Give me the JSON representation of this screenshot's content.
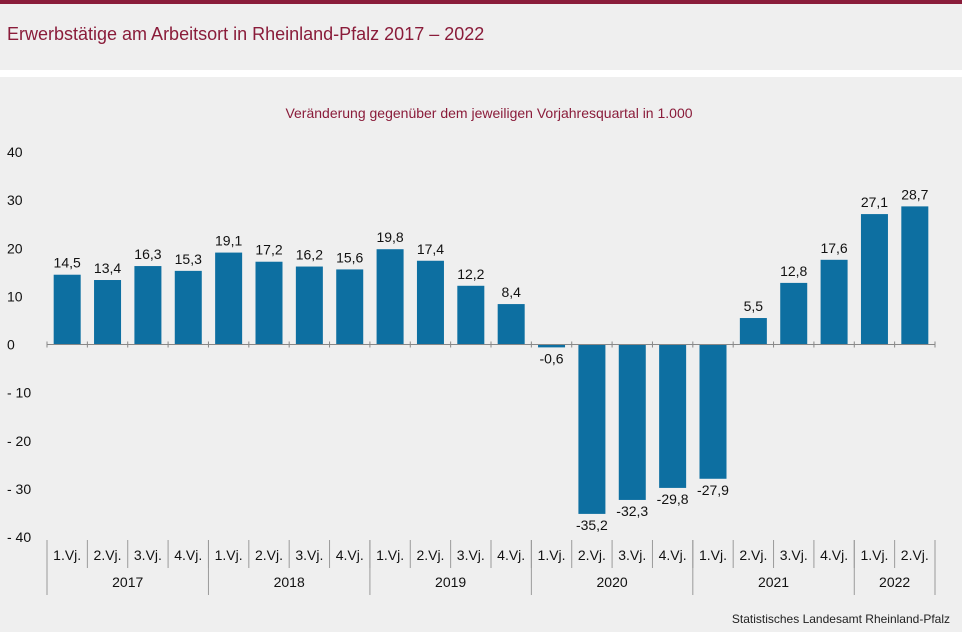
{
  "header": {
    "title": "Erwerbstätige am Arbeitsort in Rheinland-Pfalz 2017 – 2022"
  },
  "footer": {
    "source": "Statistisches Landesamt  Rheinland-Pfalz"
  },
  "colors": {
    "bar": "#0d6fa1",
    "accent": "#8a1c3a",
    "background": "#efefef"
  },
  "chart_data": {
    "type": "bar",
    "title": "Veränderung  gegenüber  dem jeweiligen Vorjahresquartal  in 1.000",
    "xlabel": "",
    "ylabel": "",
    "ylim": [
      -40,
      40
    ],
    "yticks": [
      40,
      30,
      20,
      10,
      0,
      -10,
      -20,
      -30,
      -40
    ],
    "ytick_labels": [
      "40",
      "30",
      "20",
      "10",
      "0",
      "- 10",
      "- 20",
      "- 30",
      "- 40"
    ],
    "grid": false,
    "categories": [
      "1.Vj.",
      "2.Vj.",
      "3.Vj.",
      "4.Vj.",
      "1.Vj.",
      "2.Vj.",
      "3.Vj.",
      "4.Vj.",
      "1.Vj.",
      "2.Vj.",
      "3.Vj.",
      "4.Vj.",
      "1.Vj.",
      "2.Vj.",
      "3.Vj.",
      "4.Vj.",
      "1.Vj.",
      "2.Vj.",
      "3.Vj.",
      "4.Vj.",
      "1.Vj.",
      "2.Vj."
    ],
    "groups": [
      {
        "label": "2017",
        "count": 4
      },
      {
        "label": "2018",
        "count": 4
      },
      {
        "label": "2019",
        "count": 4
      },
      {
        "label": "2020",
        "count": 4
      },
      {
        "label": "2021",
        "count": 4
      },
      {
        "label": "2022",
        "count": 2
      }
    ],
    "values": [
      14.5,
      13.4,
      16.3,
      15.3,
      19.1,
      17.2,
      16.2,
      15.6,
      19.8,
      17.4,
      12.2,
      8.4,
      -0.6,
      -35.2,
      -32.3,
      -29.8,
      -27.9,
      5.5,
      12.8,
      17.6,
      27.1,
      28.7
    ],
    "value_labels": [
      "14,5",
      "13,4",
      "16,3",
      "15,3",
      "19,1",
      "17,2",
      "16,2",
      "15,6",
      "19,8",
      "17,4",
      "12,2",
      "8,4",
      "-0,6",
      "-35,2",
      "-32,3",
      "-29,8",
      "-27,9",
      "5,5",
      "12,8",
      "17,6",
      "27,1",
      "28,7"
    ]
  }
}
